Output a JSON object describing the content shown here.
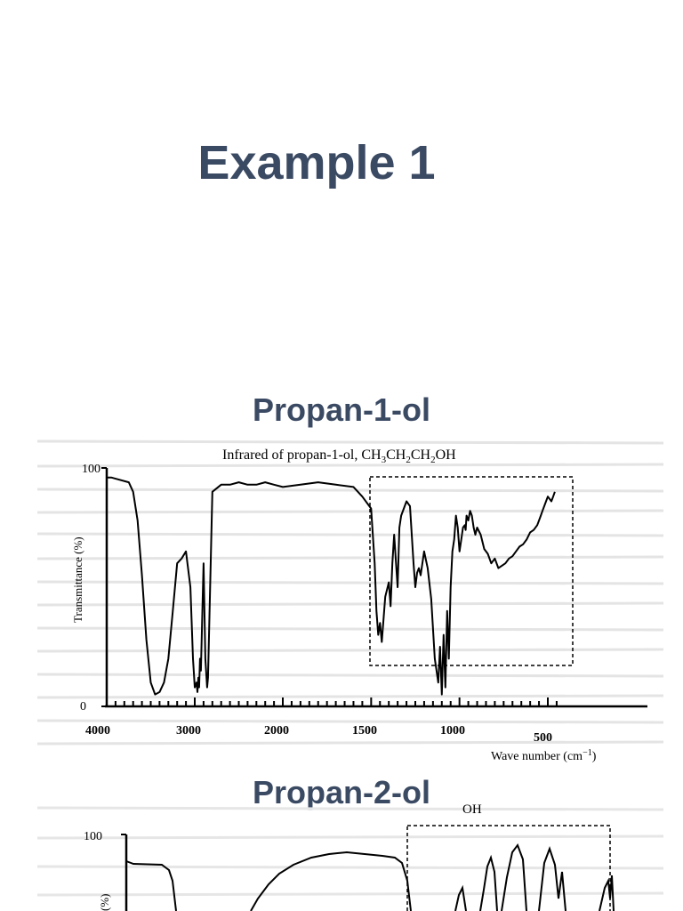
{
  "slide": {
    "title": "Example 1"
  },
  "spectra": [
    {
      "heading": "Propan-1-ol",
      "caption_prefix": "Infrared of propan-1-ol, ",
      "caption_formula": [
        "CH",
        "3",
        "CH",
        "2",
        "CH",
        "2",
        "OH"
      ],
      "ylabel": "Transmittance (%)",
      "xlabel": "Wave number (cm",
      "xlabel_unit_sup": "−1",
      "xlabel_close": ")",
      "y_ticks": [
        "100",
        "0"
      ],
      "x_ticks": [
        "4000",
        "3000",
        "2000",
        "1500",
        "1000",
        "500"
      ]
    },
    {
      "heading": "Propan-2-ol",
      "oh_label": "OH",
      "ylabel_fragment": "(%)",
      "y_ticks": [
        "100"
      ]
    }
  ],
  "chart_data": [
    {
      "type": "line",
      "title": "Infrared of propan-1-ol, CH3CH2CH2OH",
      "xlabel": "Wave number (cm−1)",
      "ylabel": "Transmittance (%)",
      "ylim": [
        0,
        100
      ],
      "x_axis": "wavenumber with scale change at 2000 cm−1",
      "x_tick_values": [
        4000,
        3000,
        2000,
        1500,
        1000,
        500
      ],
      "highlight_region_x": [
        1500,
        450
      ],
      "series": [
        {
          "x": [
            4000,
            3950,
            3750,
            3700,
            3650,
            3600,
            3550,
            3500,
            3450,
            3400,
            3350,
            3300,
            3250,
            3200,
            3150,
            3100,
            3050,
            3020,
            3000,
            2980,
            2970,
            2960,
            2950,
            2940,
            2930,
            2900,
            2880,
            2860,
            2850,
            2800,
            2700,
            2600,
            2500,
            2400,
            2300,
            2200,
            2100,
            2000,
            1900,
            1800,
            1700,
            1600,
            1550,
            1500,
            1480,
            1470,
            1460,
            1450,
            1440,
            1420,
            1400,
            1390,
            1380,
            1370,
            1350,
            1340,
            1330,
            1310,
            1300,
            1280,
            1260,
            1250,
            1240,
            1230,
            1220,
            1200,
            1180,
            1160,
            1140,
            1120,
            1110,
            1100,
            1090,
            1080,
            1070,
            1060,
            1050,
            1040,
            1030,
            1020,
            1010,
            1000,
            990,
            980,
            970,
            965,
            960,
            950,
            940,
            930,
            920,
            910,
            900,
            880,
            860,
            840,
            820,
            800,
            780,
            760,
            740,
            720,
            700,
            680,
            660,
            640,
            620,
            600,
            580,
            560,
            550,
            540,
            530,
            520,
            510,
            500,
            490,
            480,
            470,
            460
          ],
          "y": [
            96,
            96,
            94,
            90,
            78,
            55,
            28,
            10,
            5,
            6,
            10,
            20,
            40,
            60,
            62,
            65,
            50,
            20,
            8,
            10,
            6,
            12,
            8,
            20,
            15,
            60,
            20,
            8,
            12,
            90,
            93,
            93,
            94,
            93,
            93,
            94,
            93,
            92,
            93,
            94,
            93,
            92,
            88,
            83,
            60,
            40,
            30,
            35,
            27,
            46,
            52,
            42,
            60,
            72,
            50,
            75,
            80,
            84,
            86,
            84,
            60,
            50,
            56,
            58,
            55,
            65,
            58,
            45,
            20,
            10,
            25,
            5,
            30,
            8,
            40,
            20,
            50,
            65,
            70,
            80,
            75,
            65,
            70,
            75,
            76,
            74,
            80,
            78,
            82,
            80,
            75,
            72,
            75,
            72,
            66,
            64,
            60,
            62,
            58,
            59,
            60,
            62,
            63,
            65,
            67,
            68,
            70,
            73,
            74,
            76,
            78,
            80,
            82,
            84,
            86,
            88,
            87,
            86,
            88,
            90
          ]
        }
      ]
    },
    {
      "type": "line",
      "title": "",
      "ylabel": "(%)",
      "ylim": [
        0,
        100
      ],
      "note": "partially visible spectrum, cropped at bottom"
    }
  ]
}
